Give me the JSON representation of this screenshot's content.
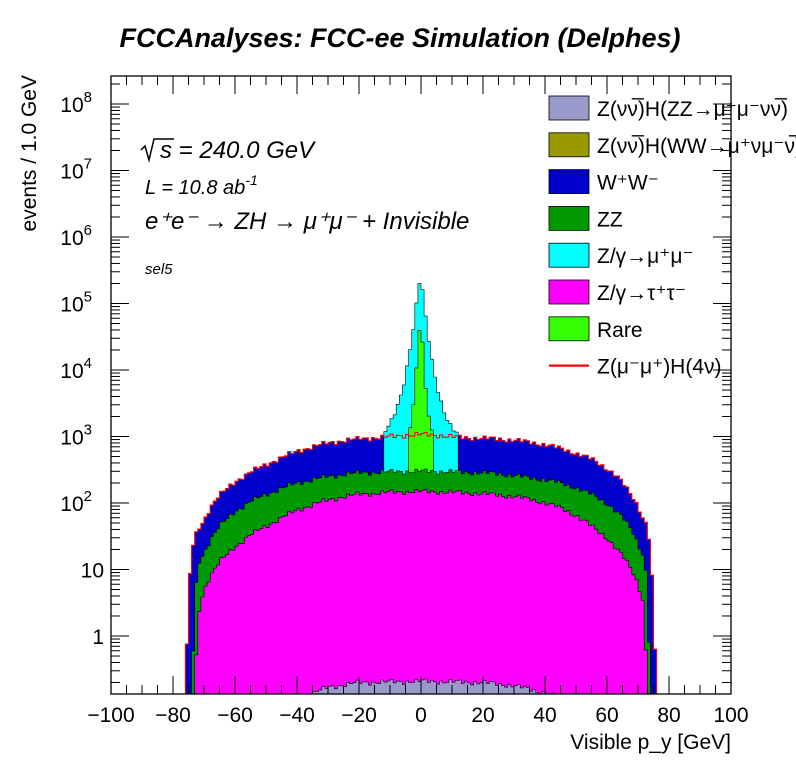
{
  "chart_data": {
    "type": "histogram",
    "stacked": true,
    "log_y": true,
    "title": "FCCAnalyses: FCC-ee Simulation (Delphes)",
    "xlabel": "Visible p_y [GeV]",
    "ylabel": "events / 1.0 GeV",
    "xlim": [
      -100,
      100
    ],
    "ylim": [
      0.12,
      300000000
    ],
    "x_ticks": [
      -100,
      -80,
      -60,
      -40,
      -20,
      0,
      20,
      40,
      60,
      80,
      100
    ],
    "y_ticks": [
      {
        "value": 1,
        "base": "1",
        "exp": ""
      },
      {
        "value": 10,
        "base": "10",
        "exp": ""
      },
      {
        "value": 100,
        "base": "10",
        "exp": "2"
      },
      {
        "value": 1000,
        "base": "10",
        "exp": "3"
      },
      {
        "value": 10000,
        "base": "10",
        "exp": "4"
      },
      {
        "value": 100000,
        "base": "10",
        "exp": "5"
      },
      {
        "value": 1000000,
        "base": "10",
        "exp": "6"
      },
      {
        "value": 10000000,
        "base": "10",
        "exp": "7"
      },
      {
        "value": 100000000,
        "base": "10",
        "exp": "8"
      }
    ],
    "annotations": {
      "sqrt_s": "s = 240.0 GeV",
      "lumi_prefix": "L = 10.8 ab",
      "lumi_exp": "-1",
      "process": "e⁺e⁻ → ZH → μ⁺μ⁻ + Invisible",
      "selection": "sel5"
    },
    "legend_position": "top-right",
    "series": [
      {
        "name": "Z(νν̅)H(ZZ→μ⁺μ⁻νν̅)",
        "color": "#9999cc",
        "cumulative_profile": [
          [
            -38,
            0.12
          ],
          [
            -30,
            0.17
          ],
          [
            -20,
            0.2
          ],
          [
            0,
            0.21
          ],
          [
            20,
            0.2
          ],
          [
            30,
            0.18
          ],
          [
            40,
            0.14
          ],
          [
            45,
            0.12
          ]
        ]
      },
      {
        "name": "Z(νν̅)H(WW→μ⁺νμ⁻ν̅)",
        "color": "#999900"
      },
      {
        "name": "W⁺W⁻",
        "color": "#0000cc",
        "cumulative_profile": [
          [
            -76,
            0.12
          ],
          [
            -75,
            4
          ],
          [
            -74,
            18
          ],
          [
            -73,
            30
          ],
          [
            -72,
            40
          ],
          [
            -70,
            55
          ],
          [
            -68,
            85
          ],
          [
            -65,
            130
          ],
          [
            -60,
            210
          ],
          [
            -55,
            290
          ],
          [
            -50,
            380
          ],
          [
            -45,
            480
          ],
          [
            -40,
            600
          ],
          [
            -35,
            700
          ],
          [
            -30,
            800
          ],
          [
            -25,
            870
          ],
          [
            -20,
            920
          ],
          [
            -15,
            960
          ],
          [
            -10,
            990
          ],
          [
            -5,
            1050
          ],
          [
            0,
            1070
          ],
          [
            5,
            1050
          ],
          [
            10,
            990
          ],
          [
            15,
            960
          ],
          [
            20,
            940
          ],
          [
            25,
            920
          ],
          [
            30,
            880
          ],
          [
            35,
            820
          ],
          [
            40,
            760
          ],
          [
            45,
            660
          ],
          [
            50,
            560
          ],
          [
            55,
            460
          ],
          [
            60,
            330
          ],
          [
            63,
            260
          ],
          [
            65,
            200
          ],
          [
            67,
            150
          ],
          [
            69,
            110
          ],
          [
            70,
            90
          ],
          [
            71,
            70
          ],
          [
            72,
            55
          ],
          [
            73,
            45
          ],
          [
            74,
            20
          ],
          [
            75,
            3
          ],
          [
            76,
            0.12
          ]
        ]
      },
      {
        "name": "ZZ",
        "color": "#009900",
        "cumulative_profile": [
          [
            -74,
            0.12
          ],
          [
            -73,
            3
          ],
          [
            -72,
            12
          ],
          [
            -70,
            18
          ],
          [
            -68,
            28
          ],
          [
            -65,
            45
          ],
          [
            -60,
            75
          ],
          [
            -55,
            105
          ],
          [
            -50,
            135
          ],
          [
            -45,
            165
          ],
          [
            -40,
            200
          ],
          [
            -35,
            225
          ],
          [
            -30,
            250
          ],
          [
            -25,
            270
          ],
          [
            -20,
            285
          ],
          [
            -15,
            290
          ],
          [
            -10,
            295
          ],
          [
            -5,
            300
          ],
          [
            0,
            300
          ],
          [
            5,
            300
          ],
          [
            10,
            295
          ],
          [
            15,
            290
          ],
          [
            20,
            285
          ],
          [
            25,
            275
          ],
          [
            30,
            260
          ],
          [
            35,
            240
          ],
          [
            40,
            225
          ],
          [
            45,
            200
          ],
          [
            50,
            170
          ],
          [
            55,
            135
          ],
          [
            60,
            100
          ],
          [
            65,
            60
          ],
          [
            68,
            40
          ],
          [
            70,
            25
          ],
          [
            72,
            15
          ],
          [
            73,
            6
          ],
          [
            74,
            0.12
          ]
        ]
      },
      {
        "name": "Z/γ→μ⁺μ⁻",
        "color": "#00ffff",
        "cumulative_profile": [
          [
            -12,
            1100
          ],
          [
            -10,
            1500
          ],
          [
            -8,
            2500
          ],
          [
            -6,
            5000
          ],
          [
            -4,
            15000
          ],
          [
            -3,
            30000
          ],
          [
            -2,
            60000
          ],
          [
            -1,
            150000
          ],
          [
            0,
            270000
          ],
          [
            1,
            90000
          ],
          [
            2,
            40000
          ],
          [
            3,
            20000
          ],
          [
            4,
            10000
          ],
          [
            6,
            4000
          ],
          [
            8,
            2000
          ],
          [
            10,
            1300
          ],
          [
            12,
            1050
          ]
        ]
      },
      {
        "name": "Z/γ→τ⁺τ⁻",
        "color": "#ff00ff",
        "cumulative_profile": [
          [
            -73,
            0.12
          ],
          [
            -72,
            2
          ],
          [
            -70,
            5
          ],
          [
            -68,
            8
          ],
          [
            -65,
            13
          ],
          [
            -60,
            22
          ],
          [
            -55,
            33
          ],
          [
            -50,
            45
          ],
          [
            -45,
            60
          ],
          [
            -40,
            78
          ],
          [
            -35,
            95
          ],
          [
            -30,
            110
          ],
          [
            -25,
            125
          ],
          [
            -20,
            135
          ],
          [
            -15,
            140
          ],
          [
            -10,
            145
          ],
          [
            -5,
            148
          ],
          [
            0,
            150
          ],
          [
            5,
            148
          ],
          [
            10,
            145
          ],
          [
            15,
            142
          ],
          [
            20,
            138
          ],
          [
            25,
            132
          ],
          [
            30,
            125
          ],
          [
            35,
            115
          ],
          [
            40,
            100
          ],
          [
            45,
            85
          ],
          [
            50,
            65
          ],
          [
            55,
            45
          ],
          [
            60,
            30
          ],
          [
            65,
            16
          ],
          [
            68,
            10
          ],
          [
            70,
            6
          ],
          [
            72,
            3
          ],
          [
            73,
            0.12
          ]
        ]
      },
      {
        "name": "Rare",
        "color": "#33ff00",
        "cumulative_profile": [
          [
            -4,
            1000
          ],
          [
            -3,
            2000
          ],
          [
            -2,
            5000
          ],
          [
            -1,
            20000
          ],
          [
            0,
            80000
          ],
          [
            1,
            8000
          ],
          [
            2,
            3000
          ],
          [
            3,
            1500
          ],
          [
            4,
            1000
          ]
        ]
      },
      {
        "name": "Z(μ⁻μ⁺)H(4ν)",
        "color": "#ff0000",
        "style": "line"
      }
    ]
  }
}
